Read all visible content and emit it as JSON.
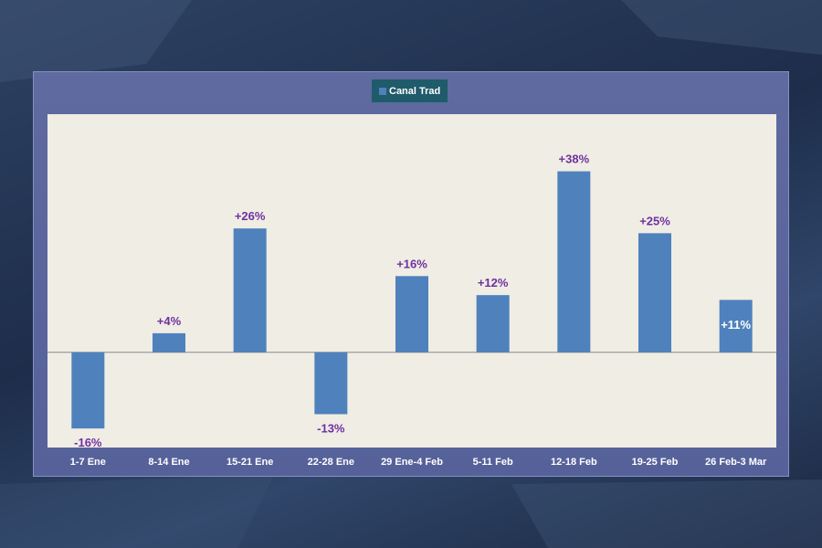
{
  "legend": {
    "label": "Canal Trad"
  },
  "colors": {
    "bar": "#4f81bd",
    "label": "#7030a0",
    "inside_label": "#ffffff"
  },
  "chart_data": {
    "type": "bar",
    "categories": [
      "1-7 Ene",
      "8-14 Ene",
      "15-21 Ene",
      "22-28 Ene",
      "29 Ene-4 Feb",
      "5-11 Feb",
      "12-18 Feb",
      "19-25 Feb",
      "26 Feb-3 Mar"
    ],
    "series": [
      {
        "name": "Canal Trad",
        "values": [
          -16,
          4,
          26,
          -13,
          16,
          12,
          38,
          25,
          11
        ]
      }
    ],
    "data_labels": [
      "-16%",
      "+4%",
      "+26%",
      "-13%",
      "+16%",
      "+12%",
      "+38%",
      "+25%",
      "+11%"
    ],
    "ylim": [
      -20,
      50
    ],
    "grid": false,
    "legend_position": "top-center"
  }
}
